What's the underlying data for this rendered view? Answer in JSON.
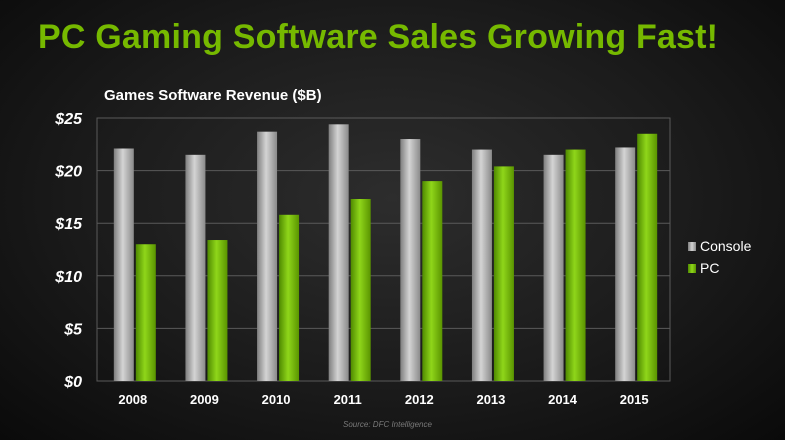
{
  "slide": {
    "title": "PC Gaming Software Sales Growing Fast!",
    "source": "Source: DFC Intelligence"
  },
  "colors": {
    "accent": "#76b900",
    "console_bar": "#a6a6a6",
    "pc_bar": "#76b900"
  },
  "chart_data": {
    "type": "bar",
    "title": "Games Software Revenue ($B)",
    "xlabel": "",
    "ylabel": "",
    "categories": [
      "2008",
      "2009",
      "2010",
      "2011",
      "2012",
      "2013",
      "2014",
      "2015"
    ],
    "series": [
      {
        "name": "Console",
        "values": [
          22.1,
          21.5,
          23.7,
          24.4,
          23.0,
          22.0,
          21.5,
          22.2
        ]
      },
      {
        "name": "PC",
        "values": [
          13.0,
          13.4,
          15.8,
          17.3,
          19.0,
          20.4,
          22.0,
          23.5
        ]
      }
    ],
    "ylim": [
      0,
      25
    ],
    "yticks": [
      0,
      5,
      10,
      15,
      20,
      25
    ],
    "ytick_labels": [
      "$0",
      "$5",
      "$10",
      "$15",
      "$20",
      "$25"
    ],
    "grid": true,
    "legend_position": "right"
  }
}
